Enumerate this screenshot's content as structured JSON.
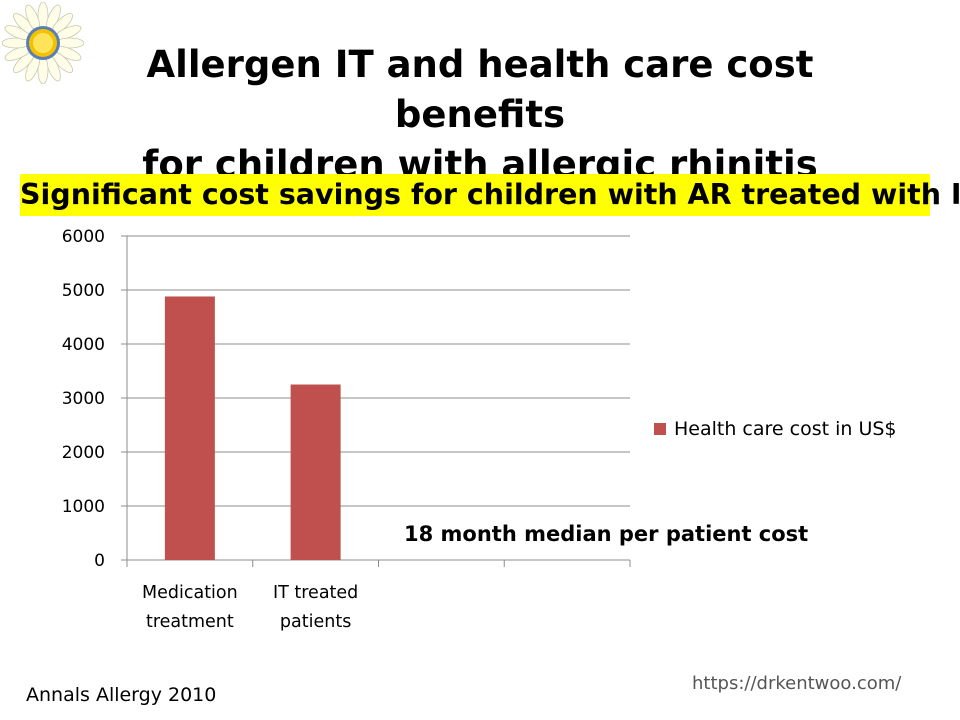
{
  "slide": {
    "title_line1": "Allergen IT and health care cost benefits",
    "title_line2": "for children with allergic rhinitis",
    "subtitle": "Significant cost savings for children with AR treated with IT",
    "subtitle_bg": "#ffff00",
    "source": "Annals Allergy 2010",
    "url": "https://drkentwoo.com/",
    "logo_icon": "sunflower-icon"
  },
  "chart_data": {
    "type": "bar",
    "categories": [
      [
        "Medication",
        "treatment"
      ],
      [
        "IT treated",
        "patients"
      ],
      [
        "",
        ""
      ],
      [
        "",
        ""
      ]
    ],
    "series": [
      {
        "name": "Health care cost in US$",
        "values": [
          4880,
          3250,
          null,
          null
        ],
        "color": "#c0504d"
      }
    ],
    "ylim": [
      0,
      6000
    ],
    "yticks": [
      0,
      1000,
      2000,
      3000,
      4000,
      5000,
      6000
    ],
    "grid": true,
    "legend": "right",
    "annotation": "18 month median per patient cost"
  }
}
